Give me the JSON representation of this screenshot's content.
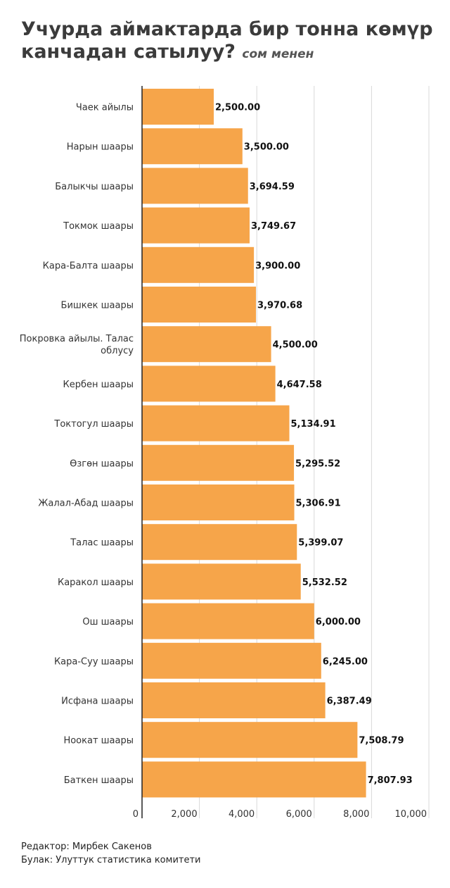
{
  "header": {
    "title": "Учурда аймактарда бир тонна көмүр канчадан сатылуу?",
    "unit": "сом менен"
  },
  "footer": {
    "editor": "Редактор: Мирбек Сакенов",
    "source": "Булак: Улуттук статистика комитети"
  },
  "chart_data": {
    "type": "bar",
    "orientation": "horizontal",
    "title": "Учурда аймактарда бир тонна көмүр канчадан сатылуу?",
    "subtitle": "сом менен",
    "categories": [
      "Чаек айылы",
      "Нарын шаары",
      "Балыкчы шаары",
      "Токмок шаары",
      "Кара-Балта шаары",
      "Бишкек шаары",
      "Покровка айылы. Талас облусу",
      "Кербен шаары",
      "Токтогул шаары",
      "Өзгөн шаары",
      "Жалал-Абад шаары",
      "Талас шаары",
      "Каракол шаары",
      "Ош шаары",
      "Кара-Суу шаары",
      "Исфана шаары",
      "Ноокат шаары",
      "Баткен шаары"
    ],
    "values": [
      2500.0,
      3500.0,
      3694.59,
      3749.67,
      3900.0,
      3970.68,
      4500.0,
      4647.58,
      5134.91,
      5295.52,
      5306.91,
      5399.07,
      5532.52,
      6000.0,
      6245.0,
      6387.49,
      7508.79,
      7807.93
    ],
    "value_labels": [
      "2,500.00",
      "3,500.00",
      "3,694.59",
      "3,749.67",
      "3,900.00",
      "3,970.68",
      "4,500.00",
      "4,647.58",
      "5,134.91",
      "5,295.52",
      "5,306.91",
      "5,399.07",
      "5,532.52",
      "6,000.00",
      "6,245.00",
      "6,387.49",
      "7,508.79",
      "7,807.93"
    ],
    "x_ticks": [
      0,
      2000,
      4000,
      6000,
      8000,
      10000
    ],
    "x_tick_labels": [
      "0",
      "2,000",
      "4,000",
      "6,000",
      "8,000",
      "10,000"
    ],
    "xlim": [
      0,
      10000
    ],
    "grid": true,
    "bar_color": "#f6a54a",
    "grid_color": "#d9d9d9",
    "axis_color": "#222222"
  }
}
